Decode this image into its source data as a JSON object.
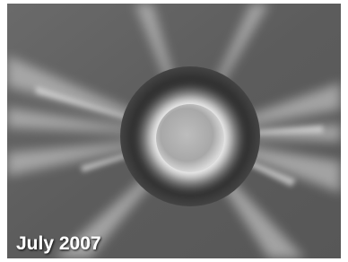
{
  "caption": "July 2007"
}
